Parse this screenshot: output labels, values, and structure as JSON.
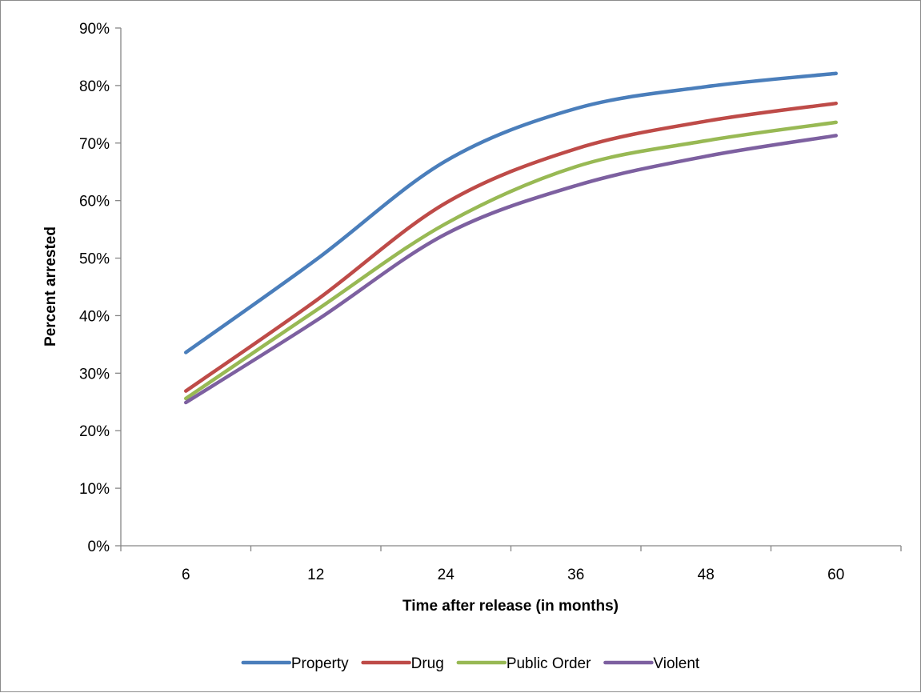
{
  "chart_data": {
    "type": "line",
    "title": "",
    "xlabel": "Time after release (in months)",
    "ylabel": "Percent arrested",
    "categories": [
      "6",
      "12",
      "24",
      "36",
      "48",
      "60"
    ],
    "ylim": [
      0,
      90
    ],
    "yticks": [
      0,
      10,
      20,
      30,
      40,
      50,
      60,
      70,
      80,
      90
    ],
    "ytick_labels": [
      "0%",
      "10%",
      "20%",
      "30%",
      "40%",
      "50%",
      "60%",
      "70%",
      "80%",
      "90%"
    ],
    "value_format": "percent",
    "grid": false,
    "legend_position": "bottom",
    "series": [
      {
        "name": "Property",
        "color": "#4a7ebb",
        "values": [
          33.6,
          49.7,
          66.9,
          76.0,
          79.8,
          82.1
        ]
      },
      {
        "name": "Drug",
        "color": "#be4b48",
        "values": [
          26.9,
          42.6,
          59.6,
          69.0,
          73.8,
          76.9
        ]
      },
      {
        "name": "Public Order",
        "color": "#98b954",
        "values": [
          25.6,
          40.9,
          56.0,
          65.9,
          70.4,
          73.6
        ]
      },
      {
        "name": "Violent",
        "color": "#7d60a0",
        "values": [
          24.9,
          39.1,
          54.2,
          62.6,
          67.7,
          71.3
        ]
      }
    ]
  }
}
